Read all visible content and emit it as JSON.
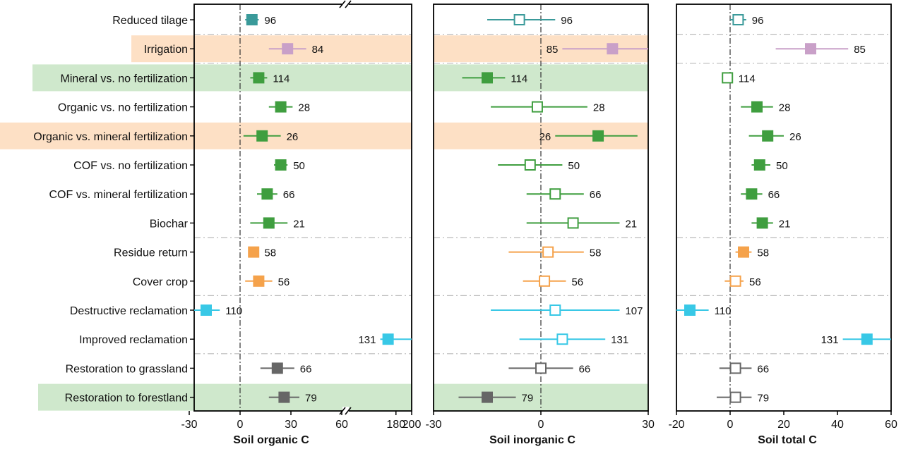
{
  "chart_data": {
    "type": "forest",
    "categories": [
      "Reduced tilage",
      "Irrigation",
      "Mineral vs. no fertilization",
      "Organic vs. no fertilization",
      "Organic vs. mineral fertilization",
      "COF vs. no fertilization",
      "COF vs. mineral fertilization",
      "Biochar",
      "Residue return",
      "Cover crop",
      "Destructive reclamation",
      "Improved reclamation",
      "Restoration to grassland",
      "Restoration to forestland"
    ],
    "category_highlights": [
      "none",
      "orange",
      "green",
      "none",
      "orange",
      "none",
      "none",
      "none",
      "none",
      "none",
      "none",
      "none",
      "none",
      "green"
    ],
    "category_colors": [
      "#3a9a9a",
      "#c9a0c8",
      "#3f9e3f",
      "#3f9e3f",
      "#3f9e3f",
      "#3f9e3f",
      "#3f9e3f",
      "#3f9e3f",
      "#f5a24b",
      "#f5a24b",
      "#38c8e6",
      "#38c8e6",
      "#666666",
      "#666666"
    ],
    "highlight_colors": {
      "orange": "#fde0c5",
      "green": "#cfe8cc"
    },
    "group_separators_after": [
      0,
      1,
      7,
      9,
      11
    ],
    "panels": [
      {
        "xlabel": "Soil organic C",
        "broken_axis": true,
        "segments": [
          {
            "range": [
              -30,
              60
            ],
            "ticks": [
              -30,
              0,
              30,
              60
            ]
          },
          {
            "range": [
              120,
              200
            ],
            "ticks": [
              180,
              200
            ]
          }
        ],
        "highlight_rows": [
          1,
          2,
          4,
          13
        ],
        "points": [
          {
            "mean": 7,
            "lo": 3,
            "hi": 11,
            "n": "96",
            "filled": true
          },
          {
            "mean": 28,
            "lo": 17,
            "hi": 39,
            "n": "84",
            "filled": true
          },
          {
            "mean": 11,
            "lo": 6,
            "hi": 16,
            "n": "114",
            "filled": true
          },
          {
            "mean": 24,
            "lo": 17,
            "hi": 31,
            "n": "28",
            "filled": true
          },
          {
            "mean": 13,
            "lo": 2,
            "hi": 24,
            "n": "26",
            "filled": true
          },
          {
            "mean": 24,
            "lo": 20,
            "hi": 28,
            "n": "50",
            "filled": true
          },
          {
            "mean": 16,
            "lo": 10,
            "hi": 22,
            "n": "66",
            "filled": true
          },
          {
            "mean": 17,
            "lo": 6,
            "hi": 28,
            "n": "21",
            "filled": true
          },
          {
            "mean": 8,
            "lo": 5,
            "hi": 11,
            "n": "58",
            "filled": true
          },
          {
            "mean": 11,
            "lo": 3,
            "hi": 19,
            "n": "56",
            "filled": true
          },
          {
            "mean": -20,
            "lo": -28,
            "hi": -12,
            "n": "110",
            "filled": true
          },
          {
            "mean": 170,
            "lo": 160,
            "hi": 200,
            "n": "131",
            "filled": true,
            "label_side": "left"
          },
          {
            "mean": 22,
            "lo": 12,
            "hi": 32,
            "n": "66",
            "filled": true
          },
          {
            "mean": 26,
            "lo": 17,
            "hi": 35,
            "n": "79",
            "filled": true
          }
        ]
      },
      {
        "xlabel": "Soil inorganic C",
        "range": [
          -30,
          30
        ],
        "ticks": [
          -30,
          0,
          30
        ],
        "highlight_rows": [
          1,
          2,
          4,
          13
        ],
        "points": [
          {
            "mean": -6,
            "lo": -15,
            "hi": 4,
            "n": "96",
            "filled": false
          },
          {
            "mean": 20,
            "lo": 6,
            "hi": 30,
            "n": "85",
            "filled": true,
            "label_side": "left"
          },
          {
            "mean": -15,
            "lo": -22,
            "hi": -10,
            "n": "114",
            "filled": true
          },
          {
            "mean": -1,
            "lo": -14,
            "hi": 13,
            "n": "28",
            "filled": false
          },
          {
            "mean": 16,
            "lo": 4,
            "hi": 27,
            "n": "26",
            "filled": true,
            "label_side": "left"
          },
          {
            "mean": -3,
            "lo": -12,
            "hi": 6,
            "n": "50",
            "filled": false
          },
          {
            "mean": 4,
            "lo": -4,
            "hi": 12,
            "n": "66",
            "filled": false
          },
          {
            "mean": 9,
            "lo": -4,
            "hi": 22,
            "n": "21",
            "filled": false
          },
          {
            "mean": 2,
            "lo": -9,
            "hi": 12,
            "n": "58",
            "filled": false
          },
          {
            "mean": 1,
            "lo": -5,
            "hi": 7,
            "n": "56",
            "filled": false
          },
          {
            "mean": 4,
            "lo": -14,
            "hi": 22,
            "n": "107",
            "filled": false
          },
          {
            "mean": 6,
            "lo": -6,
            "hi": 18,
            "n": "131",
            "filled": false
          },
          {
            "mean": 0,
            "lo": -9,
            "hi": 9,
            "n": "66",
            "filled": false
          },
          {
            "mean": -15,
            "lo": -23,
            "hi": -7,
            "n": "79",
            "filled": true
          }
        ]
      },
      {
        "xlabel": "Soil total C",
        "range": [
          -20,
          60
        ],
        "ticks": [
          -20,
          0,
          20,
          40,
          60
        ],
        "highlight_rows": [],
        "points": [
          {
            "mean": 3,
            "lo": 0,
            "hi": 6,
            "n": "96",
            "filled": false
          },
          {
            "mean": 30,
            "lo": 17,
            "hi": 44,
            "n": "85",
            "filled": true
          },
          {
            "mean": -1,
            "lo": -3,
            "hi": 1,
            "n": "114",
            "filled": false
          },
          {
            "mean": 10,
            "lo": 4,
            "hi": 16,
            "n": "28",
            "filled": true
          },
          {
            "mean": 14,
            "lo": 7,
            "hi": 20,
            "n": "26",
            "filled": true
          },
          {
            "mean": 11,
            "lo": 8,
            "hi": 15,
            "n": "50",
            "filled": true
          },
          {
            "mean": 8,
            "lo": 4,
            "hi": 12,
            "n": "66",
            "filled": true
          },
          {
            "mean": 12,
            "lo": 8,
            "hi": 16,
            "n": "21",
            "filled": true
          },
          {
            "mean": 5,
            "lo": 2,
            "hi": 8,
            "n": "58",
            "filled": true
          },
          {
            "mean": 2,
            "lo": -2,
            "hi": 5,
            "n": "56",
            "filled": false
          },
          {
            "mean": -15,
            "lo": -20,
            "hi": -8,
            "n": "110",
            "filled": true
          },
          {
            "mean": 51,
            "lo": 42,
            "hi": 60,
            "n": "131",
            "filled": true,
            "label_side": "left"
          },
          {
            "mean": 2,
            "lo": -4,
            "hi": 8,
            "n": "66",
            "filled": false
          },
          {
            "mean": 2,
            "lo": -5,
            "hi": 8,
            "n": "79",
            "filled": false
          }
        ]
      }
    ]
  }
}
